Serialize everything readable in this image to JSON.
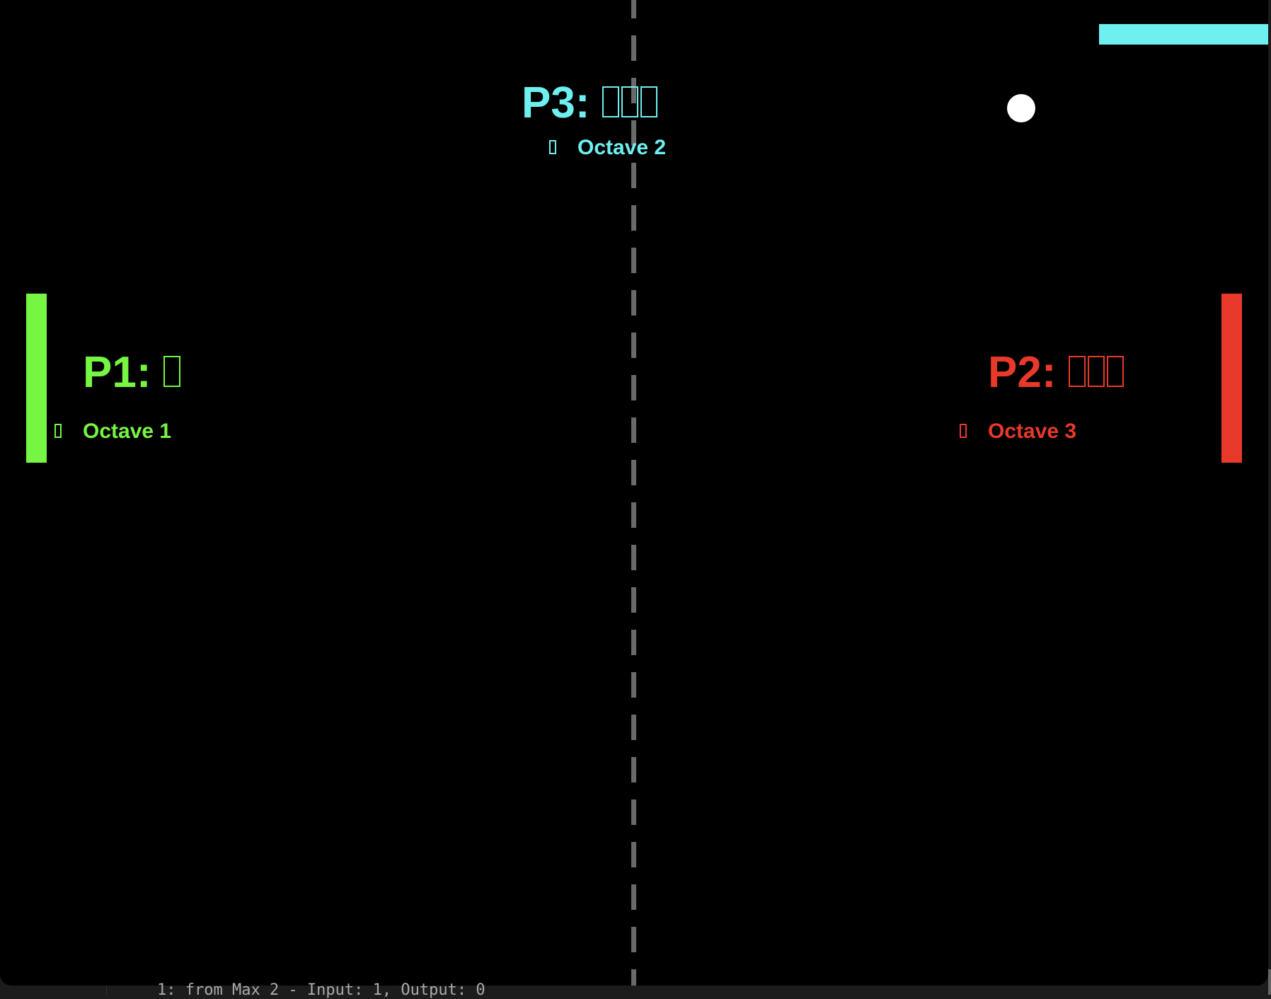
{
  "players": [
    {
      "id": "p1",
      "label": "P1:",
      "name_glyphs": 1,
      "octave": "Octave 1",
      "color": "#76f542"
    },
    {
      "id": "p2",
      "label": "P2:",
      "name_glyphs": 3,
      "octave": "Octave 3",
      "color": "#e8392a"
    },
    {
      "id": "p3",
      "label": "P3:",
      "name_glyphs": 3,
      "octave": "Octave 2",
      "color": "#6ef0f0"
    }
  ],
  "ball_color": "#ffffff",
  "center_line_color": "#6a6a6a",
  "status_text": "1: from Max 2 - Input: 1, Output: 0"
}
